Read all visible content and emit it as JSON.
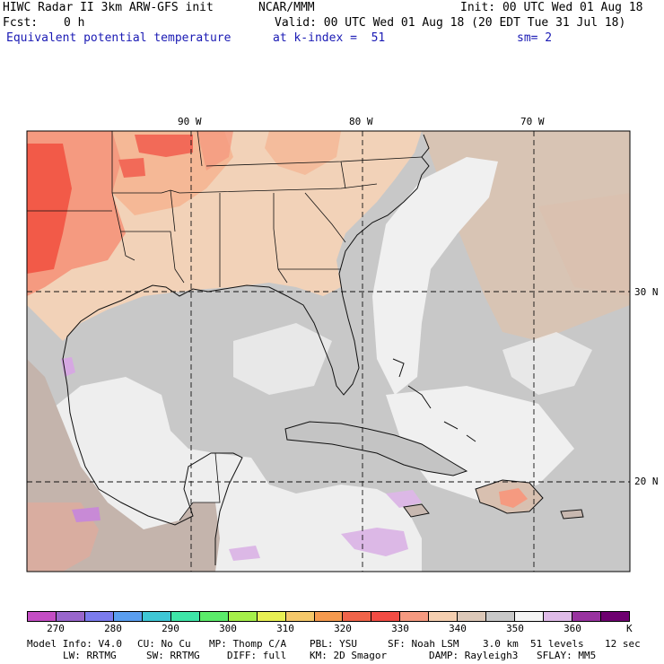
{
  "header": {
    "title": "HIWC Radar II 3km ARW-GFS init",
    "org": "NCAR/MMM",
    "init": "Init: 00 UTC Wed 01 Aug 18",
    "fcst_label": "Fcst:",
    "fcst_value": "0 h",
    "valid": "Valid: 00 UTC Wed 01 Aug 18 (20 EDT Tue 31 Jul 18)",
    "field": "Equivalent potential temperature",
    "level": "at k-index =  51",
    "smooth": "sm= 2"
  },
  "map": {
    "lon_labels": [
      "90 W",
      "80 W",
      "70 W"
    ],
    "lat_labels": [
      "30 N",
      "20 N"
    ]
  },
  "colorbar": {
    "colors": [
      "#c44dc4",
      "#9966cc",
      "#7b7bee",
      "#5a9ef0",
      "#3fc7d6",
      "#3ee6a8",
      "#5bec6a",
      "#a6f04a",
      "#e8f053",
      "#f5c86a",
      "#f59a4e",
      "#f0644a",
      "#f24c44",
      "#f59a80",
      "#f5cfb0",
      "#dcc8b8",
      "#c8c8c8",
      "#f4f4f4",
      "#dfbbe8",
      "#9933a0",
      "#6e0070"
    ],
    "labels": [
      "270",
      "280",
      "290",
      "300",
      "310",
      "320",
      "330",
      "340",
      "350",
      "360"
    ],
    "unit": "K"
  },
  "footer": {
    "line1": [
      "Model Info: V4.0",
      "CU: No Cu",
      "MP: Thomp C/A",
      "PBL: YSU",
      "SF: Noah LSM",
      "3.0 km",
      "51 levels",
      "12 sec"
    ],
    "line2": [
      "LW: RRTMG",
      "SW: RRTMG",
      "DIFF: full",
      "KM: 2D Smagor",
      "DAMP: Rayleigh3",
      "SFLAY: MM5"
    ]
  }
}
